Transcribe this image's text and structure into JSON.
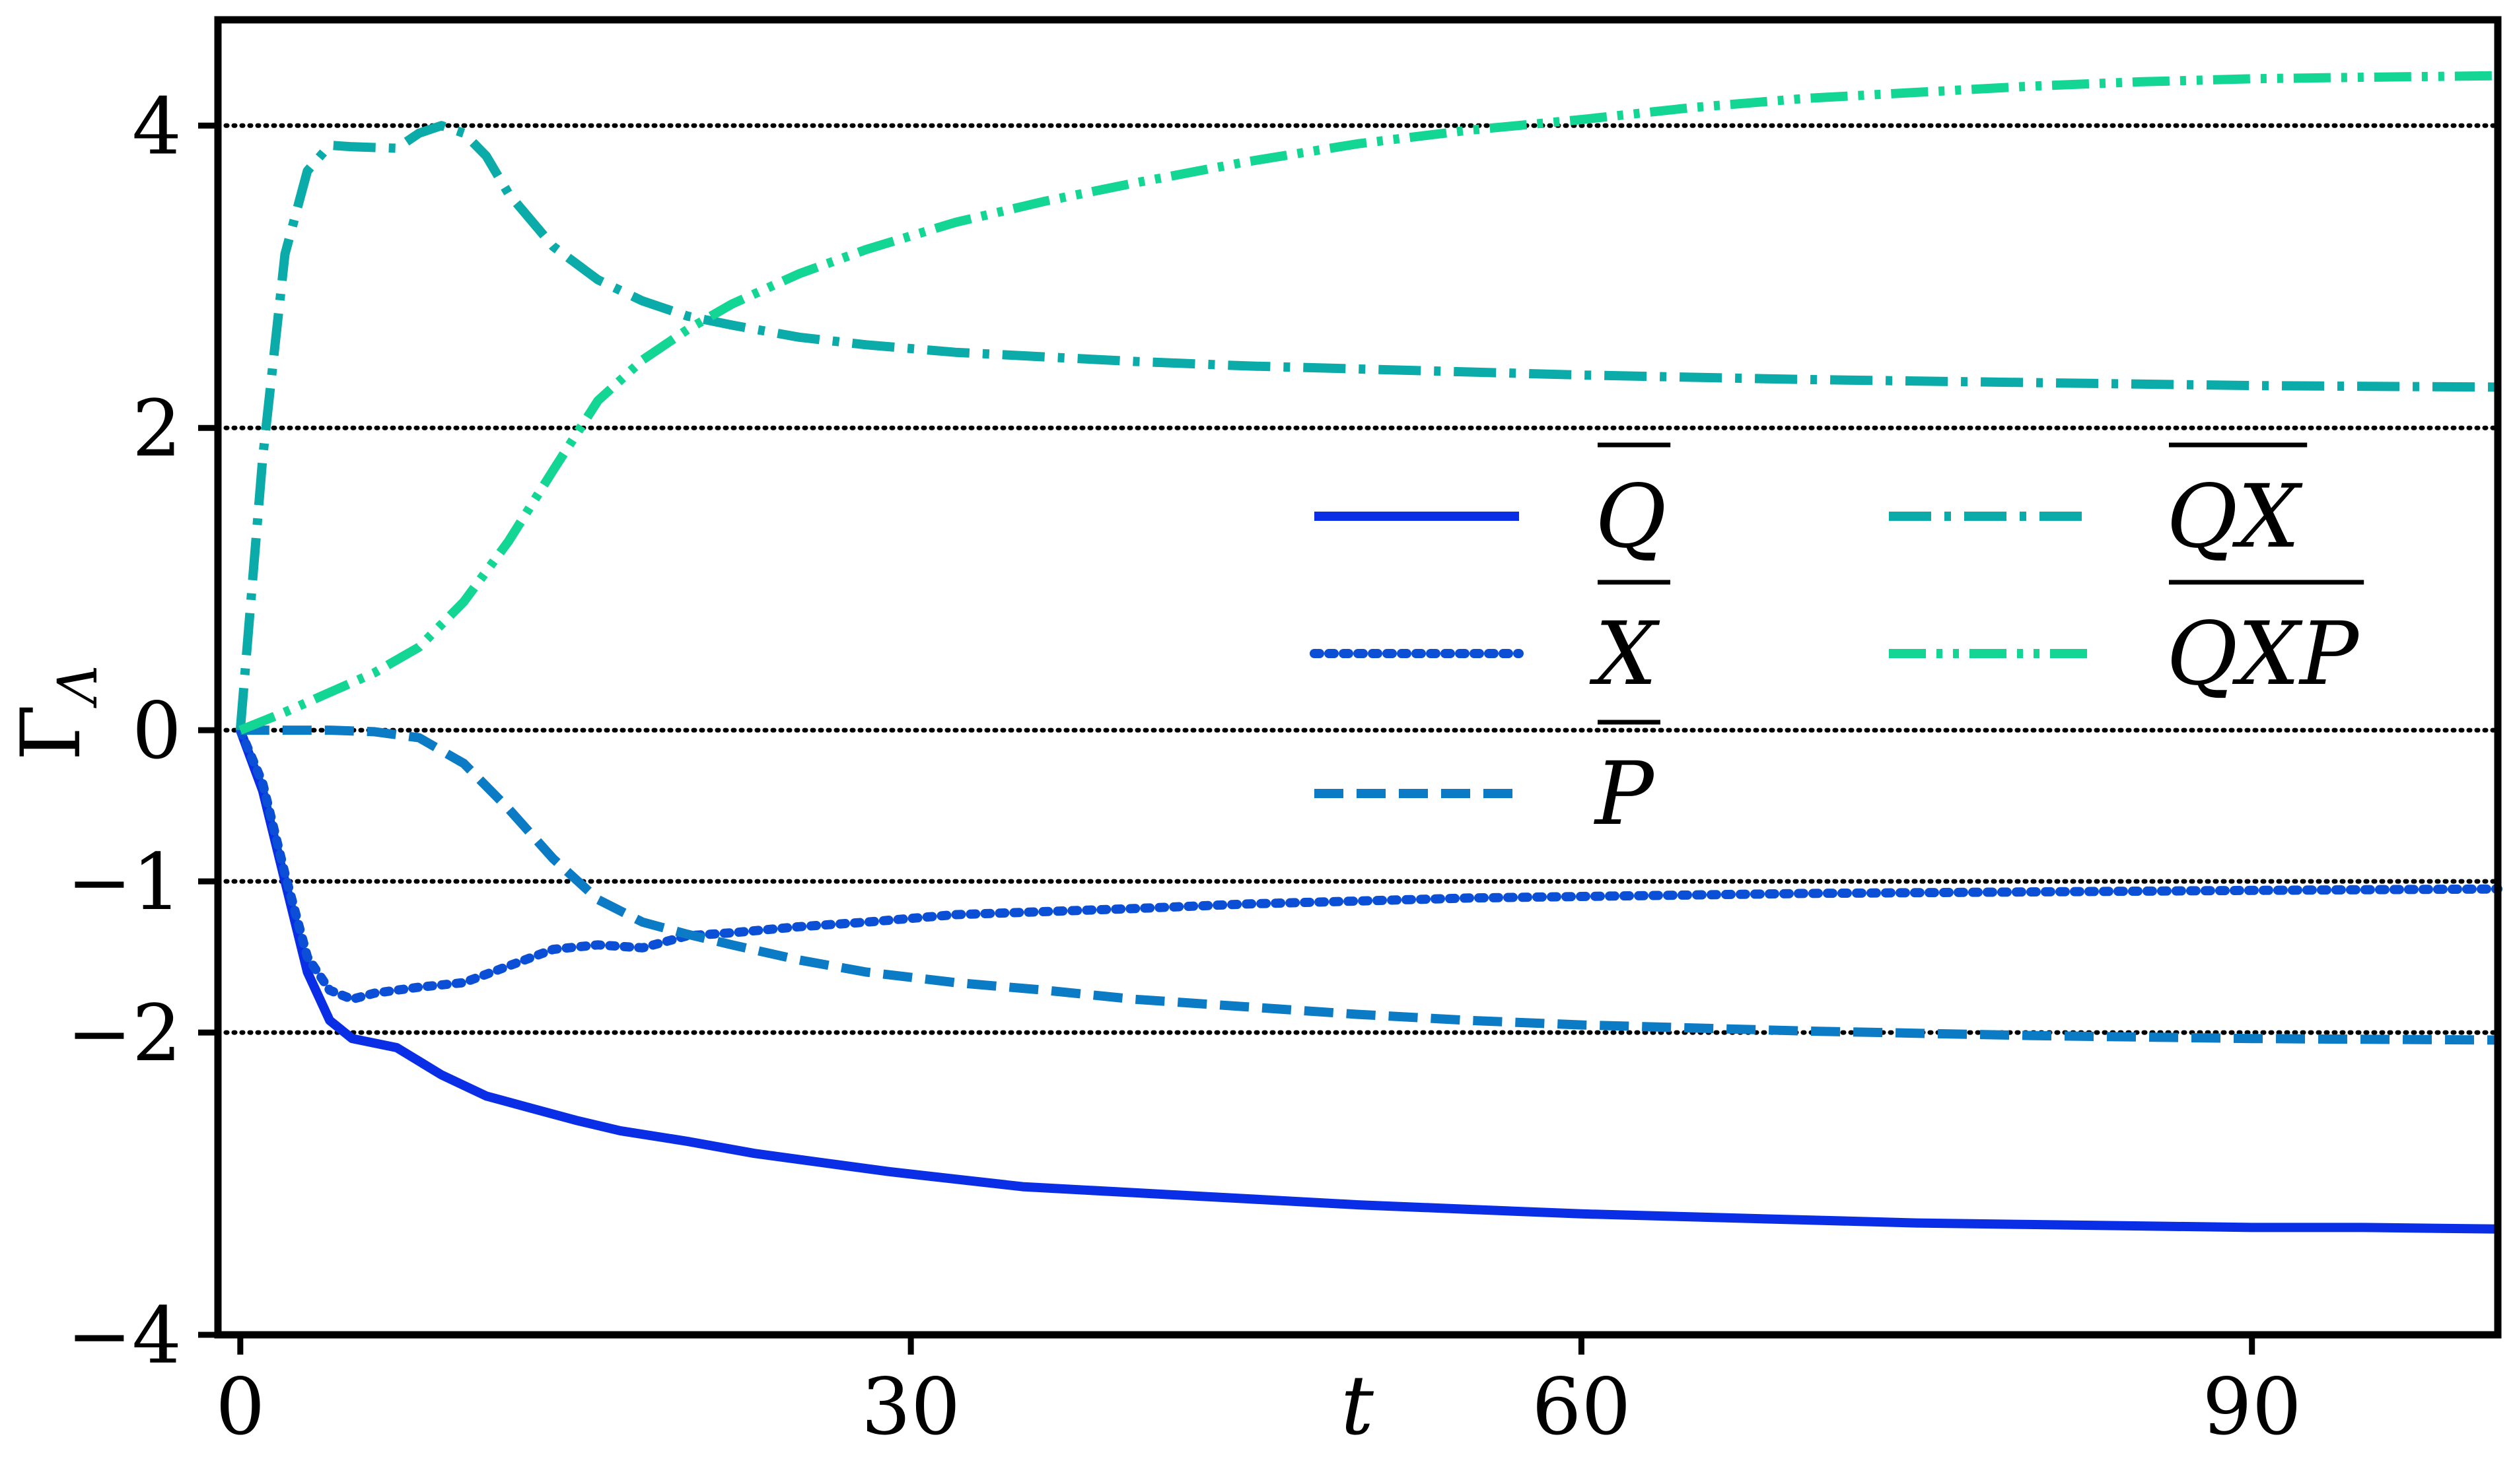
{
  "chart_data": {
    "type": "line",
    "title": "",
    "xlabel": "t",
    "ylabel": "Γ_Λ",
    "ylabel_main": "Γ",
    "ylabel_sub": "Λ",
    "xlim": [
      -1,
      101
    ],
    "ylim": [
      -4,
      4.7
    ],
    "x_ticks": [
      0,
      30,
      60,
      90
    ],
    "x_tick_labels": [
      "0",
      "30",
      "60",
      "90"
    ],
    "y_ticks": [
      -4,
      -2,
      -1,
      0,
      2,
      4
    ],
    "y_tick_labels": [
      "−4",
      "−2",
      "−1",
      "0",
      "2",
      "4"
    ],
    "reference_lines": [
      4,
      2,
      0,
      -1,
      -2
    ],
    "grid": false,
    "legend_placement": "center-right",
    "series": [
      {
        "name": "Q̄",
        "legend_base": "Q",
        "color": "#0a2ee6",
        "style": "solid",
        "points": [
          [
            0,
            0
          ],
          [
            1,
            -0.4
          ],
          [
            2,
            -1.0
          ],
          [
            3,
            -1.6
          ],
          [
            4,
            -1.92
          ],
          [
            5,
            -2.04
          ],
          [
            7,
            -2.1
          ],
          [
            9,
            -2.28
          ],
          [
            11,
            -2.42
          ],
          [
            13,
            -2.5
          ],
          [
            15,
            -2.58
          ],
          [
            17,
            -2.65
          ],
          [
            20,
            -2.72
          ],
          [
            23,
            -2.8
          ],
          [
            26,
            -2.86
          ],
          [
            29,
            -2.92
          ],
          [
            32,
            -2.97
          ],
          [
            35,
            -3.02
          ],
          [
            40,
            -3.06
          ],
          [
            45,
            -3.1
          ],
          [
            50,
            -3.14
          ],
          [
            55,
            -3.17
          ],
          [
            60,
            -3.2
          ],
          [
            65,
            -3.22
          ],
          [
            70,
            -3.24
          ],
          [
            75,
            -3.26
          ],
          [
            80,
            -3.27
          ],
          [
            85,
            -3.28
          ],
          [
            90,
            -3.29
          ],
          [
            95,
            -3.29
          ],
          [
            101,
            -3.3
          ]
        ]
      },
      {
        "name": "X̄",
        "legend_base": "X",
        "color": "#0a4fd6",
        "style": "dotted",
        "points": [
          [
            0,
            0
          ],
          [
            1,
            -0.35
          ],
          [
            2,
            -0.95
          ],
          [
            3,
            -1.5
          ],
          [
            4,
            -1.72
          ],
          [
            5,
            -1.78
          ],
          [
            6,
            -1.74
          ],
          [
            8,
            -1.7
          ],
          [
            10,
            -1.67
          ],
          [
            12,
            -1.56
          ],
          [
            14,
            -1.45
          ],
          [
            16,
            -1.42
          ],
          [
            18,
            -1.44
          ],
          [
            20,
            -1.36
          ],
          [
            22,
            -1.34
          ],
          [
            25,
            -1.3
          ],
          [
            28,
            -1.27
          ],
          [
            32,
            -1.22
          ],
          [
            36,
            -1.2
          ],
          [
            40,
            -1.18
          ],
          [
            45,
            -1.15
          ],
          [
            50,
            -1.13
          ],
          [
            55,
            -1.11
          ],
          [
            60,
            -1.1
          ],
          [
            70,
            -1.08
          ],
          [
            80,
            -1.07
          ],
          [
            90,
            -1.06
          ],
          [
            101,
            -1.05
          ]
        ]
      },
      {
        "name": "P̄",
        "legend_base": "P",
        "color": "#0a7bc4",
        "style": "dashed",
        "points": [
          [
            0,
            0
          ],
          [
            2,
            0
          ],
          [
            4,
            0
          ],
          [
            6,
            -0.01
          ],
          [
            8,
            -0.05
          ],
          [
            10,
            -0.22
          ],
          [
            12,
            -0.52
          ],
          [
            14,
            -0.85
          ],
          [
            16,
            -1.12
          ],
          [
            18,
            -1.27
          ],
          [
            20,
            -1.35
          ],
          [
            22,
            -1.42
          ],
          [
            25,
            -1.52
          ],
          [
            28,
            -1.6
          ],
          [
            32,
            -1.67
          ],
          [
            36,
            -1.72
          ],
          [
            40,
            -1.78
          ],
          [
            45,
            -1.83
          ],
          [
            50,
            -1.88
          ],
          [
            55,
            -1.92
          ],
          [
            60,
            -1.95
          ],
          [
            70,
            -1.99
          ],
          [
            80,
            -2.02
          ],
          [
            90,
            -2.04
          ],
          [
            101,
            -2.05
          ]
        ]
      },
      {
        "name": "QX̄",
        "legend_base": "QX",
        "color": "#0aaba8",
        "style": "dashdot",
        "points": [
          [
            0,
            0
          ],
          [
            1,
            1.8
          ],
          [
            2,
            3.15
          ],
          [
            3,
            3.7
          ],
          [
            4,
            3.87
          ],
          [
            5,
            3.86
          ],
          [
            7,
            3.85
          ],
          [
            8,
            3.95
          ],
          [
            9,
            4.0
          ],
          [
            10,
            3.95
          ],
          [
            11,
            3.8
          ],
          [
            12,
            3.55
          ],
          [
            14,
            3.2
          ],
          [
            16,
            2.98
          ],
          [
            18,
            2.84
          ],
          [
            20,
            2.74
          ],
          [
            22,
            2.68
          ],
          [
            25,
            2.6
          ],
          [
            28,
            2.55
          ],
          [
            32,
            2.5
          ],
          [
            36,
            2.47
          ],
          [
            40,
            2.44
          ],
          [
            45,
            2.41
          ],
          [
            50,
            2.39
          ],
          [
            55,
            2.37
          ],
          [
            60,
            2.35
          ],
          [
            70,
            2.32
          ],
          [
            80,
            2.3
          ],
          [
            90,
            2.28
          ],
          [
            101,
            2.27
          ]
        ]
      },
      {
        "name": "QXP̄",
        "legend_base": "QXP",
        "color": "#14d694",
        "style": "dashdotdot",
        "points": [
          [
            0,
            0
          ],
          [
            2,
            0.12
          ],
          [
            4,
            0.25
          ],
          [
            6,
            0.38
          ],
          [
            8,
            0.55
          ],
          [
            10,
            0.85
          ],
          [
            12,
            1.25
          ],
          [
            14,
            1.72
          ],
          [
            16,
            2.18
          ],
          [
            18,
            2.45
          ],
          [
            20,
            2.65
          ],
          [
            22,
            2.82
          ],
          [
            25,
            3.02
          ],
          [
            28,
            3.18
          ],
          [
            32,
            3.36
          ],
          [
            36,
            3.5
          ],
          [
            40,
            3.62
          ],
          [
            45,
            3.76
          ],
          [
            50,
            3.88
          ],
          [
            55,
            3.97
          ],
          [
            60,
            4.04
          ],
          [
            65,
            4.12
          ],
          [
            70,
            4.18
          ],
          [
            75,
            4.22
          ],
          [
            80,
            4.26
          ],
          [
            85,
            4.29
          ],
          [
            90,
            4.31
          ],
          [
            95,
            4.32
          ],
          [
            101,
            4.33
          ]
        ]
      }
    ]
  }
}
